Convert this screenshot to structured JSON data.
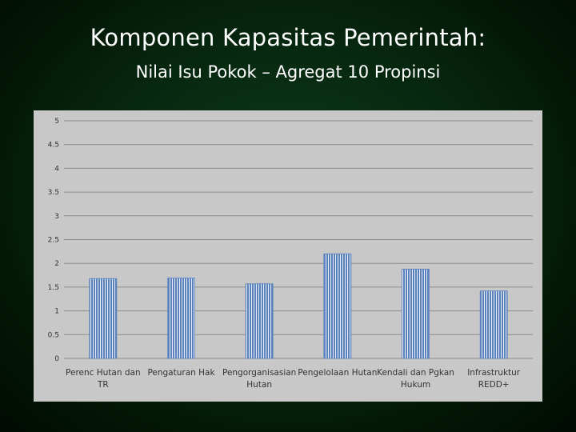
{
  "slide": {
    "title": "Komponen Kapasitas Pemerintah:",
    "subtitle": "Nilai Isu Pokok – Agregat 10 Propinsi"
  },
  "colors": {
    "bar_fill": "#5b82bd",
    "bar_stripe": "#e8eef7",
    "panel": "#c8c8c8",
    "gridline": "#8c8c8c"
  },
  "chart_data": {
    "type": "bar",
    "title": "",
    "xlabel": "",
    "ylabel": "",
    "ylim": [
      0,
      5
    ],
    "yticks": [
      "0",
      "0.5",
      "1",
      "1.5",
      "2",
      "2.5",
      "3",
      "3.5",
      "4",
      "4.5",
      "5"
    ],
    "grid": true,
    "legend": "none",
    "categories": [
      [
        "Perenc Hutan dan",
        "TR"
      ],
      [
        "Pengaturan Hak"
      ],
      [
        "Pengorganisasian",
        "Hutan"
      ],
      [
        "Pengelolaan Hutan"
      ],
      [
        "Kendali dan Pgkan",
        "Hukum"
      ],
      [
        "Infrastruktur",
        "REDD+"
      ]
    ],
    "values": [
      1.68,
      1.69,
      1.57,
      2.2,
      1.88,
      1.42
    ]
  }
}
